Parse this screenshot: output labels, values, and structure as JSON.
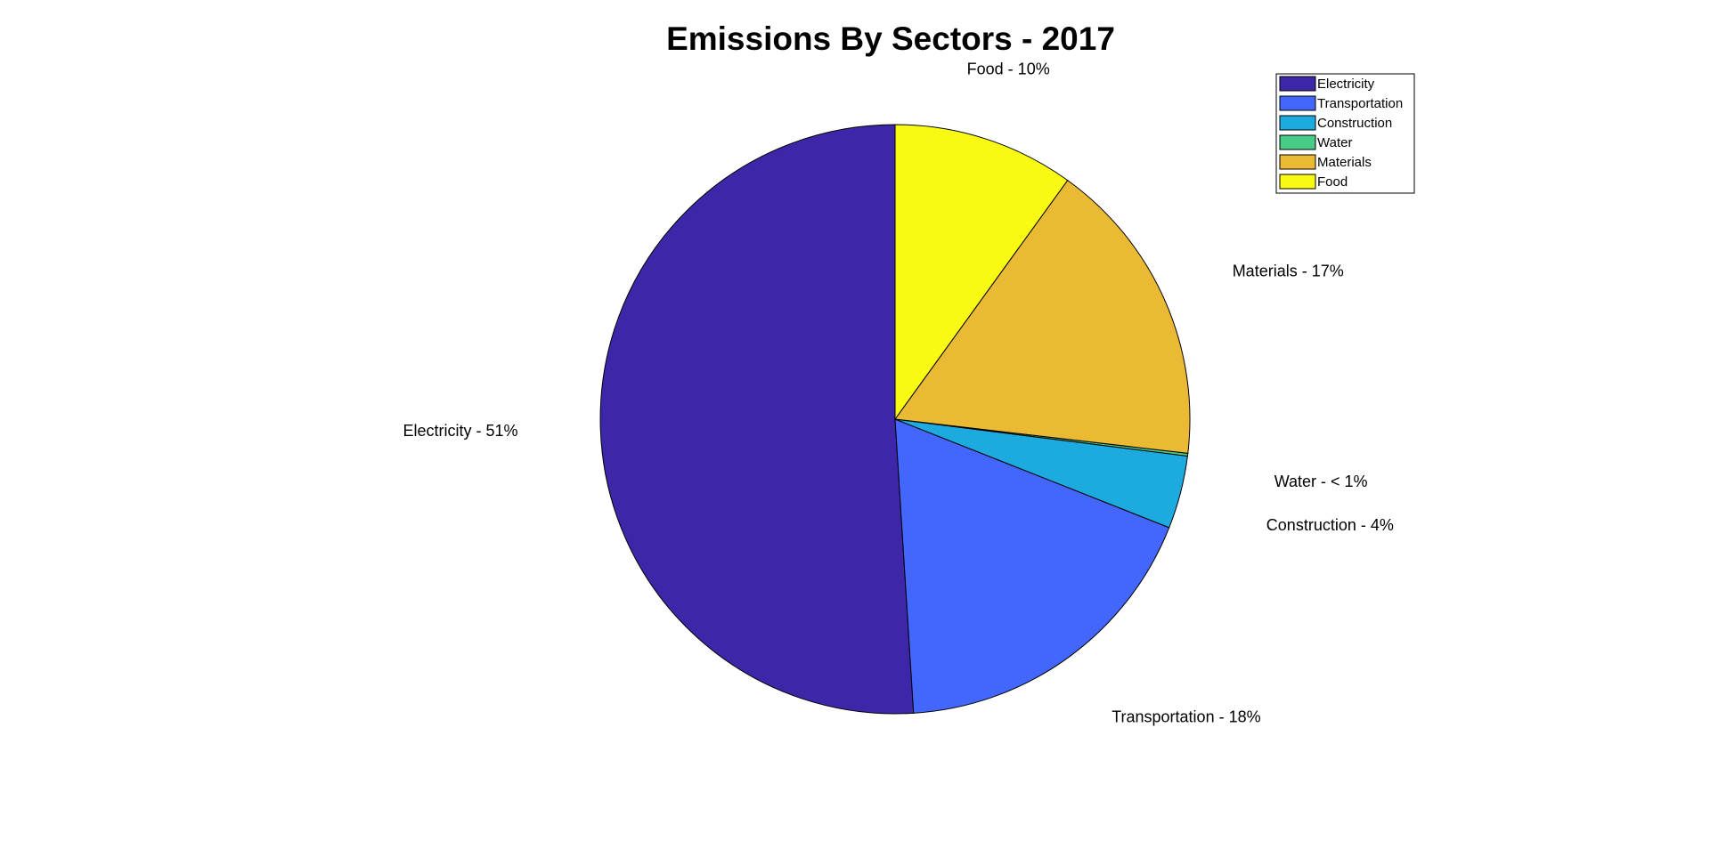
{
  "chart_data": {
    "type": "pie",
    "title": "Emissions By Sectors - 2017",
    "slices": [
      {
        "name": "Electricity",
        "value": 51.0,
        "label": "Electricity - 51%",
        "color": "#3D26A8"
      },
      {
        "name": "Transportation",
        "value": 18.0,
        "label": "Transportation - 18%",
        "color": "#4367FD"
      },
      {
        "name": "Construction",
        "value": 4.0,
        "label": "Construction - 4%",
        "color": "#1CAADF"
      },
      {
        "name": "Water",
        "value": 0.15,
        "label": "Water - < 1%",
        "color": "#48CB86"
      },
      {
        "name": "Materials",
        "value": 16.9,
        "label": "Materials - 17%",
        "color": "#EBBA34"
      },
      {
        "name": "Food",
        "value": 9.95,
        "label": "Food - 10%",
        "color": "#F9FA14"
      }
    ],
    "direction": "counterclockwise",
    "start_angle": "top",
    "legend": {
      "placement": "top-right",
      "entries": [
        "Electricity",
        "Transportation",
        "Construction",
        "Water",
        "Materials",
        "Food"
      ]
    }
  }
}
